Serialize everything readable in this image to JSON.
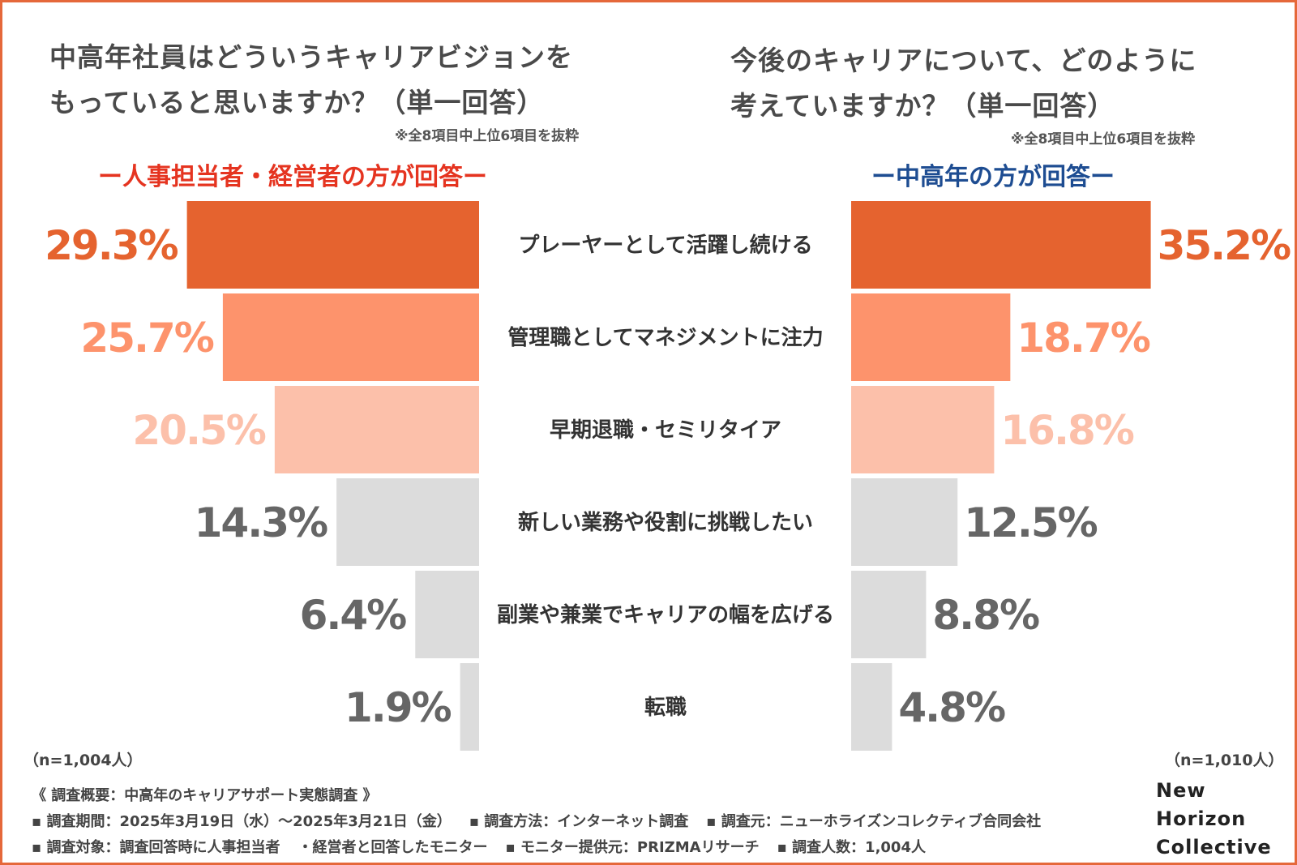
{
  "colors": {
    "accent": "#e5683a",
    "bar_colors": [
      "#e5632f",
      "#fd936c",
      "#fcc0aa",
      "#dcdcdc",
      "#dcdcdc",
      "#dcdcdc"
    ],
    "value_colors": [
      "#e5632f",
      "#fd936c",
      "#fcc0aa",
      "#666666",
      "#666666",
      "#666666"
    ],
    "left_subhead": "#e53420",
    "right_subhead": "#1e4d92"
  },
  "left": {
    "title_lines": [
      "中高年社員はどういうキャリアビジョンを",
      "もっていると思いますか？（単一回答）"
    ],
    "note": "※全8項目中上位6項目を抜粋",
    "subhead": "ー人事担当者・経営者の方が回答ー",
    "n_label": "（n=1,004人）"
  },
  "right": {
    "title_lines": [
      "今後のキャリアについて、どのように",
      "考えていますか？（単一回答）"
    ],
    "note": "※全8項目中上位6項目を抜粋",
    "subhead": "ー中高年の方が回答ー",
    "n_label": "（n=1,010人）"
  },
  "chart_data": {
    "type": "bar",
    "orientation": "horizontal-butterfly",
    "categories": [
      "プレーヤーとして活躍し続ける",
      "管理職としてマネジメントに注力",
      "早期退職・セミリタイア",
      "新しい業務や役割に挑戦したい",
      "副業や兼業でキャリアの幅を広げる",
      "転職"
    ],
    "series": [
      {
        "name": "人事担当者・経営者",
        "values": [
          29.3,
          25.7,
          20.5,
          14.3,
          6.4,
          1.9
        ],
        "labels": [
          "29.3%",
          "25.7%",
          "20.5%",
          "14.3%",
          "6.4%",
          "1.9%"
        ]
      },
      {
        "name": "中高年",
        "values": [
          35.2,
          18.7,
          16.8,
          12.5,
          8.8,
          4.8
        ],
        "labels": [
          "35.2%",
          "18.7%",
          "16.8%",
          "12.5%",
          "8.8%",
          "4.8%"
        ]
      }
    ],
    "unit": "%"
  },
  "footer": {
    "heading": "《 調査概要：中高年のキャリアサポート実態調査 》",
    "line1": [
      "▪ 調査期間：2025年3月19日（水）～2025年3月21日（金）",
      "▪ 調査方法：インターネット調査",
      "▪ 調査元：ニューホライズンコレクティブ合同会社"
    ],
    "line2": [
      "▪ 調査対象：調査回答時に人事担当者",
      "・経営者と回答したモニター",
      "▪ モニター提供元：PRIZMAリサーチ",
      "▪ 調査人数：1,004人"
    ]
  },
  "brand": {
    "lines": [
      "New",
      "Horizon",
      "Collective"
    ]
  }
}
